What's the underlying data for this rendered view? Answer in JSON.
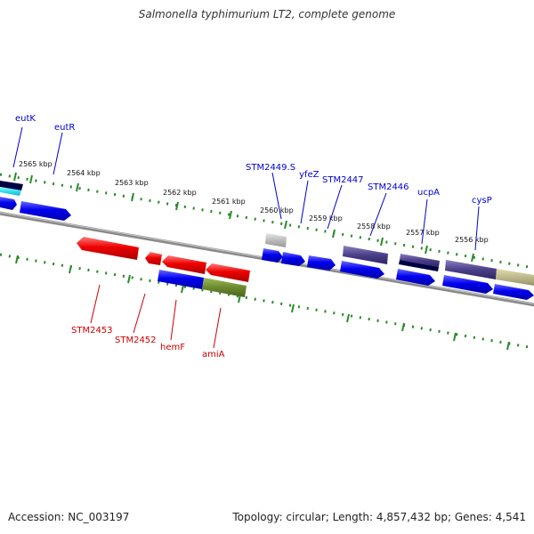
{
  "title": "Salmonella typhimurium LT2, complete genome",
  "footer": {
    "accession": "Accession: NC_003197",
    "summary": "Topology: circular; Length: 4,857,432 bp; Genes: 4,541"
  },
  "colors": {
    "forward": "#0000ee",
    "reverse": "#ee0000",
    "backbone": "#777777",
    "ticks": "#228822",
    "label_forward": "#0000cc",
    "label_reverse": "#cc0000",
    "purple": "#4b3f8a",
    "tan": "#bdb98a",
    "olive": "#6b8a2e",
    "cyan": "#33e0f0",
    "navy": "#000044",
    "grey": "#bbbbbb"
  },
  "ticks": [
    "2565 kbp",
    "2564 kbp",
    "2563 kbp",
    "2562 kbp",
    "2561 kbp",
    "2560 kbp",
    "2559 kbp",
    "2558 kbp",
    "2557 kbp",
    "2556 kbp"
  ],
  "genes_forward": [
    "eutK",
    "eutR",
    "STM2449.S",
    "yfeZ",
    "STM2447",
    "STM2446",
    "ucpA",
    "cysP"
  ],
  "genes_reverse": [
    "STM2453",
    "STM2452",
    "hemF",
    "amiA"
  ]
}
